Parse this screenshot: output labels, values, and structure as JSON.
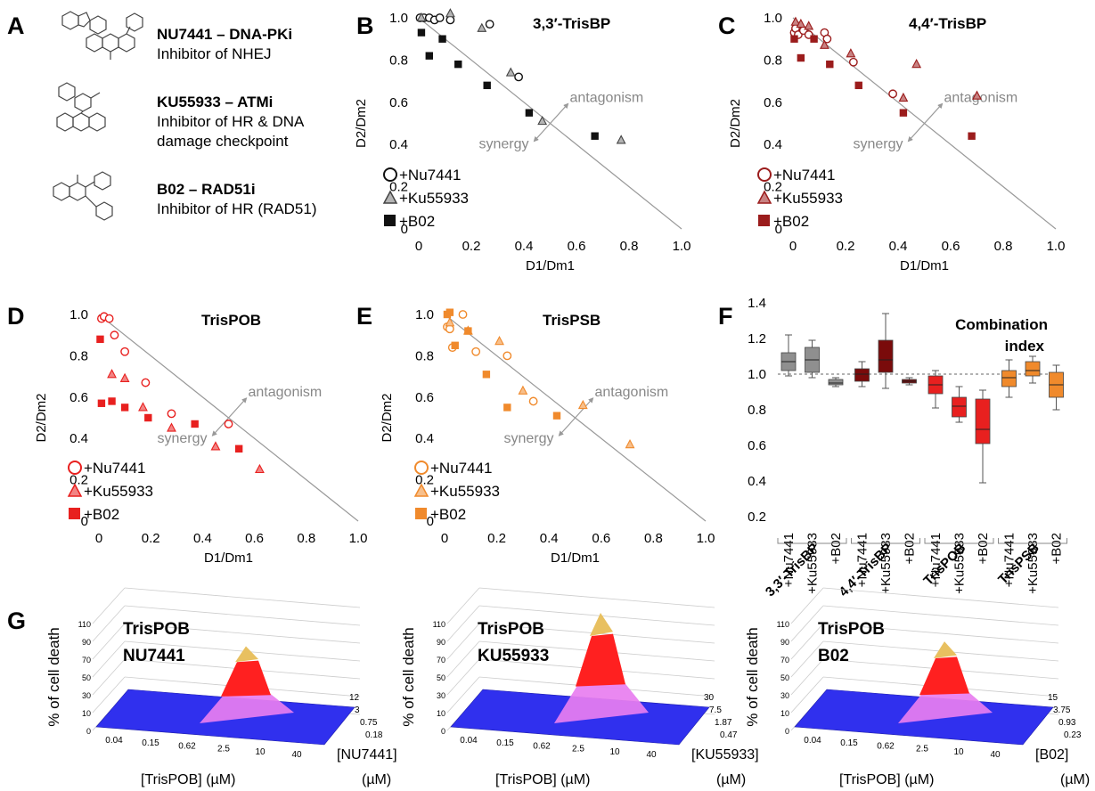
{
  "panel_letters": [
    "A",
    "B",
    "C",
    "D",
    "E",
    "F",
    "G"
  ],
  "panelA": {
    "compounds": [
      {
        "name_bold": "NU7441 – DNA-PKi",
        "desc": [
          "Inhibitor of NHEJ"
        ]
      },
      {
        "name_bold": "KU55933 – ATMi",
        "desc": [
          "Inhibitor of HR & DNA",
          "damage checkpoint"
        ]
      },
      {
        "name_bold": "B02 – RAD51i",
        "desc": [
          "Inhibitor of HR (RAD51)"
        ]
      }
    ]
  },
  "isobologram_common": {
    "xlabel": "D1/Dm1",
    "ylabel": "D2/Dm2",
    "xticks": [
      "0",
      "0.2",
      "0.4",
      "0.6",
      "0.8",
      "1.0"
    ],
    "yticks": [
      "0",
      "0.2",
      "0.4",
      "0.6",
      "0.8",
      "1.0"
    ],
    "antagonism_label": "antagonism",
    "synergy_label": "synergy",
    "legend": [
      "+Nu7441",
      "+Ku55933",
      "+B02"
    ]
  },
  "panelF": {
    "title_lines": [
      "Combination",
      "index"
    ],
    "yticks": [
      "0.2",
      "0.4",
      "0.6",
      "0.8",
      "1.0",
      "1.2",
      "1.4"
    ],
    "group_labels": [
      "3,3′-TrisBP",
      "4,4′-TrisBP",
      "TrisPOB",
      "TrisPSB"
    ],
    "box_labels": [
      "+Nu7441",
      "+Ku55933",
      "+B02"
    ]
  },
  "panelG": {
    "zlabel": "% of cell death",
    "zticks": [
      "0",
      "10",
      "30",
      "50",
      "70",
      "90",
      "110"
    ],
    "xlabel": "[TrisPOB] (µM)",
    "xticks": [
      "0.04",
      "0.15",
      "0.62",
      "2.5",
      "10",
      "40"
    ],
    "plots": [
      {
        "title": [
          "TrisPOB",
          "NU7441"
        ],
        "ylabel": "[NU7441]",
        "yunit": "(µM)",
        "yticks": [
          "0.18",
          "0.75",
          "3",
          "12"
        ]
      },
      {
        "title": [
          "TrisPOB",
          "KU55933"
        ],
        "ylabel": "[KU55933]",
        "yunit": "(µM)",
        "yticks": [
          "0.47",
          "1.87",
          "7.5",
          "30"
        ]
      },
      {
        "title": [
          "TrisPOB",
          "B02"
        ],
        "ylabel": "[B02]",
        "yunit": "(µM)",
        "yticks": [
          "0.23",
          "0.93",
          "3.75",
          "15"
        ]
      }
    ]
  },
  "chart_data": [
    {
      "type": "scatter",
      "panel": "B",
      "title": "3,3′-TrisBP",
      "xlabel": "D1/Dm1",
      "ylabel": "D2/Dm2",
      "xlim": [
        0,
        1
      ],
      "ylim": [
        0,
        1
      ],
      "color": "#111111",
      "series": [
        {
          "name": "+Nu7441",
          "marker": "circle",
          "points": [
            [
              0.005,
              1.0
            ],
            [
              0.02,
              1.0
            ],
            [
              0.04,
              1.0
            ],
            [
              0.06,
              0.99
            ],
            [
              0.08,
              1.0
            ],
            [
              0.12,
              0.99
            ],
            [
              0.27,
              0.97
            ],
            [
              0.38,
              0.72
            ]
          ]
        },
        {
          "name": "+Ku55933",
          "marker": "triangle",
          "points": [
            [
              0.01,
              1.0
            ],
            [
              0.12,
              1.02
            ],
            [
              0.24,
              0.95
            ],
            [
              0.35,
              0.74
            ],
            [
              0.47,
              0.51
            ],
            [
              0.77,
              0.42
            ]
          ]
        },
        {
          "name": "+B02",
          "marker": "square",
          "points": [
            [
              0.01,
              0.93
            ],
            [
              0.04,
              0.82
            ],
            [
              0.09,
              0.9
            ],
            [
              0.15,
              0.78
            ],
            [
              0.26,
              0.68
            ],
            [
              0.42,
              0.55
            ],
            [
              0.67,
              0.44
            ]
          ]
        }
      ]
    },
    {
      "type": "scatter",
      "panel": "C",
      "title": "4,4′-TrisBP",
      "xlabel": "D1/Dm1",
      "ylabel": "D2/Dm2",
      "xlim": [
        0,
        1
      ],
      "ylim": [
        0,
        1
      ],
      "color": "#9b1c1c",
      "series": [
        {
          "name": "+Nu7441",
          "marker": "circle",
          "points": [
            [
              0.005,
              0.93
            ],
            [
              0.01,
              0.95
            ],
            [
              0.02,
              0.92
            ],
            [
              0.04,
              0.94
            ],
            [
              0.06,
              0.92
            ],
            [
              0.12,
              0.93
            ],
            [
              0.13,
              0.9
            ],
            [
              0.23,
              0.79
            ],
            [
              0.38,
              0.64
            ]
          ]
        },
        {
          "name": "+Ku55933",
          "marker": "triangle",
          "points": [
            [
              0.01,
              0.98
            ],
            [
              0.03,
              0.97
            ],
            [
              0.06,
              0.96
            ],
            [
              0.12,
              0.87
            ],
            [
              0.22,
              0.83
            ],
            [
              0.42,
              0.62
            ],
            [
              0.47,
              0.78
            ],
            [
              0.7,
              0.63
            ]
          ]
        },
        {
          "name": "+B02",
          "marker": "square",
          "points": [
            [
              0.005,
              0.9
            ],
            [
              0.03,
              0.81
            ],
            [
              0.08,
              0.9
            ],
            [
              0.14,
              0.78
            ],
            [
              0.25,
              0.68
            ],
            [
              0.42,
              0.55
            ],
            [
              0.68,
              0.44
            ]
          ]
        }
      ]
    },
    {
      "type": "scatter",
      "panel": "D",
      "title": "TrisPOB",
      "xlabel": "D1/Dm1",
      "ylabel": "D2/Dm2",
      "xlim": [
        0,
        1
      ],
      "ylim": [
        0,
        1
      ],
      "color": "#e8201f",
      "series": [
        {
          "name": "+Nu7441",
          "marker": "circle",
          "points": [
            [
              0.01,
              0.98
            ],
            [
              0.02,
              0.99
            ],
            [
              0.04,
              0.98
            ],
            [
              0.06,
              0.9
            ],
            [
              0.1,
              0.82
            ],
            [
              0.18,
              0.67
            ],
            [
              0.28,
              0.52
            ],
            [
              0.5,
              0.47
            ]
          ]
        },
        {
          "name": "+Ku55933",
          "marker": "triangle",
          "points": [
            [
              0.05,
              0.71
            ],
            [
              0.1,
              0.69
            ],
            [
              0.17,
              0.55
            ],
            [
              0.28,
              0.45
            ],
            [
              0.45,
              0.36
            ],
            [
              0.62,
              0.25
            ]
          ]
        },
        {
          "name": "+B02",
          "marker": "square",
          "points": [
            [
              0.005,
              0.88
            ],
            [
              0.01,
              0.57
            ],
            [
              0.05,
              0.58
            ],
            [
              0.1,
              0.55
            ],
            [
              0.19,
              0.5
            ],
            [
              0.37,
              0.47
            ],
            [
              0.54,
              0.35
            ]
          ]
        }
      ]
    },
    {
      "type": "scatter",
      "panel": "E",
      "title": "TrisPSB",
      "xlabel": "D1/Dm1",
      "ylabel": "D2/Dm2",
      "xlim": [
        0,
        1
      ],
      "ylim": [
        0,
        1
      ],
      "color": "#f08a2c",
      "series": [
        {
          "name": "+Nu7441",
          "marker": "circle",
          "points": [
            [
              0.01,
              0.94
            ],
            [
              0.02,
              0.93
            ],
            [
              0.03,
              0.84
            ],
            [
              0.07,
              1.0
            ],
            [
              0.12,
              0.82
            ],
            [
              0.24,
              0.8
            ],
            [
              0.34,
              0.58
            ]
          ]
        },
        {
          "name": "+Ku55933",
          "marker": "triangle",
          "points": [
            [
              0.02,
              0.96
            ],
            [
              0.09,
              0.92
            ],
            [
              0.21,
              0.87
            ],
            [
              0.3,
              0.63
            ],
            [
              0.53,
              0.56
            ],
            [
              0.71,
              0.37
            ]
          ]
        },
        {
          "name": "+B02",
          "marker": "square",
          "points": [
            [
              0.01,
              1.0
            ],
            [
              0.02,
              1.01
            ],
            [
              0.04,
              0.85
            ],
            [
              0.09,
              0.92
            ],
            [
              0.16,
              0.71
            ],
            [
              0.24,
              0.55
            ],
            [
              0.43,
              0.51
            ]
          ]
        }
      ]
    },
    {
      "type": "box",
      "panel": "F",
      "title": "Combination index",
      "ylim": [
        0.2,
        1.4
      ],
      "reference_line": 1.0,
      "groups": [
        {
          "name": "3,3′-TrisBP",
          "color": "#8f8f8f",
          "boxes": [
            {
              "label": "+Nu7441",
              "min": 0.99,
              "q1": 1.02,
              "median": 1.07,
              "q3": 1.12,
              "max": 1.22
            },
            {
              "label": "+Ku55933",
              "min": 0.98,
              "q1": 1.01,
              "median": 1.08,
              "q3": 1.15,
              "max": 1.19
            },
            {
              "label": "+B02",
              "min": 0.93,
              "q1": 0.94,
              "median": 0.95,
              "q3": 0.97,
              "max": 0.98
            }
          ]
        },
        {
          "name": "4,4′-TrisBP",
          "color": "#7a0b0b",
          "boxes": [
            {
              "label": "+Nu7441",
              "min": 0.93,
              "q1": 0.96,
              "median": 1.0,
              "q3": 1.03,
              "max": 1.07
            },
            {
              "label": "+Ku55933",
              "min": 0.92,
              "q1": 1.01,
              "median": 1.08,
              "q3": 1.19,
              "max": 1.34
            },
            {
              "label": "+B02",
              "min": 0.94,
              "q1": 0.95,
              "median": 0.96,
              "q3": 0.97,
              "max": 0.98
            }
          ]
        },
        {
          "name": "TrisPOB",
          "color": "#e8201f",
          "boxes": [
            {
              "label": "+Nu7441",
              "min": 0.81,
              "q1": 0.89,
              "median": 0.94,
              "q3": 0.99,
              "max": 1.02
            },
            {
              "label": "+Ku55933",
              "min": 0.73,
              "q1": 0.76,
              "median": 0.82,
              "q3": 0.87,
              "max": 0.93
            },
            {
              "label": "+B02",
              "min": 0.39,
              "q1": 0.61,
              "median": 0.69,
              "q3": 0.86,
              "max": 0.91
            }
          ]
        },
        {
          "name": "TrisPSB",
          "color": "#f08a2c",
          "boxes": [
            {
              "label": "+Nu7441",
              "min": 0.87,
              "q1": 0.93,
              "median": 0.98,
              "q3": 1.02,
              "max": 1.08
            },
            {
              "label": "+Ku55933",
              "min": 0.95,
              "q1": 0.99,
              "median": 1.02,
              "q3": 1.07,
              "max": 1.1
            },
            {
              "label": "+B02",
              "min": 0.8,
              "q1": 0.87,
              "median": 0.94,
              "q3": 1.01,
              "max": 1.05
            }
          ]
        }
      ]
    },
    {
      "type": "surface",
      "panel": "G",
      "zlabel": "% of cell death",
      "zlim": [
        0,
        110
      ],
      "x_label": "[TrisPOB] (µM)",
      "x": [
        "0.04",
        "0.15",
        "0.62",
        "2.5",
        "10",
        "40"
      ],
      "colors": {
        "low": "#3030ee",
        "mid": "#e87ef0",
        "high": "#ff2020",
        "top": "#e8c060"
      },
      "surfaces": [
        {
          "y_label": "[NU7441] (µM)",
          "y": [
            "0.18",
            "0.75",
            "3",
            "12"
          ],
          "peak_x": "2.5",
          "peak_z": 75
        },
        {
          "y_label": "[KU55933] (µM)",
          "y": [
            "0.47",
            "1.87",
            "7.5",
            "30"
          ],
          "peak_x": "2.5",
          "peak_z": 110
        },
        {
          "y_label": "[B02] (µM)",
          "y": [
            "0.23",
            "0.93",
            "3.75",
            "15"
          ],
          "peak_x": "2.5",
          "peak_z": 80
        }
      ]
    }
  ]
}
